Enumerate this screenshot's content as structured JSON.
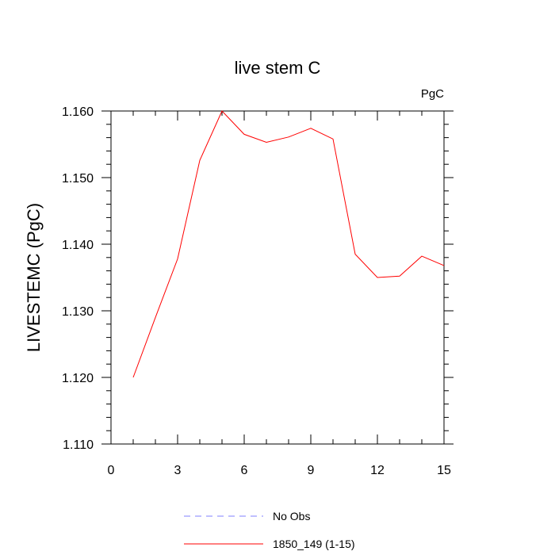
{
  "chart_data": {
    "type": "line",
    "title": "live stem C",
    "units_label": "PgC",
    "xlabel": "",
    "ylabel": "LIVESTEMC  (PgC)",
    "xlim": [
      0,
      15
    ],
    "ylim": [
      1.11,
      1.16
    ],
    "x_ticks": [
      0,
      3,
      6,
      9,
      12,
      15
    ],
    "x_tick_labels": [
      "0",
      "3",
      "6",
      "9",
      "12",
      "15"
    ],
    "y_ticks": [
      1.11,
      1.12,
      1.13,
      1.14,
      1.15,
      1.16
    ],
    "y_tick_labels": [
      "1.110",
      "1.120",
      "1.130",
      "1.140",
      "1.150",
      "1.160"
    ],
    "grid": false,
    "legend_position": "bottom",
    "series": [
      {
        "name": "No Obs",
        "color": "#8080ff",
        "dash": "dashed",
        "x": [],
        "y": []
      },
      {
        "name": "1850_149 (1-15)",
        "color": "#ff0000",
        "dash": "solid",
        "x": [
          1,
          2,
          3,
          4,
          5,
          6,
          7,
          8,
          9,
          10,
          11,
          12,
          13,
          14,
          15
        ],
        "y": [
          1.12,
          1.129,
          1.1378,
          1.1526,
          1.16,
          1.1565,
          1.1553,
          1.1561,
          1.1574,
          1.1558,
          1.1385,
          1.135,
          1.1352,
          1.1382,
          1.1368
        ]
      }
    ]
  }
}
